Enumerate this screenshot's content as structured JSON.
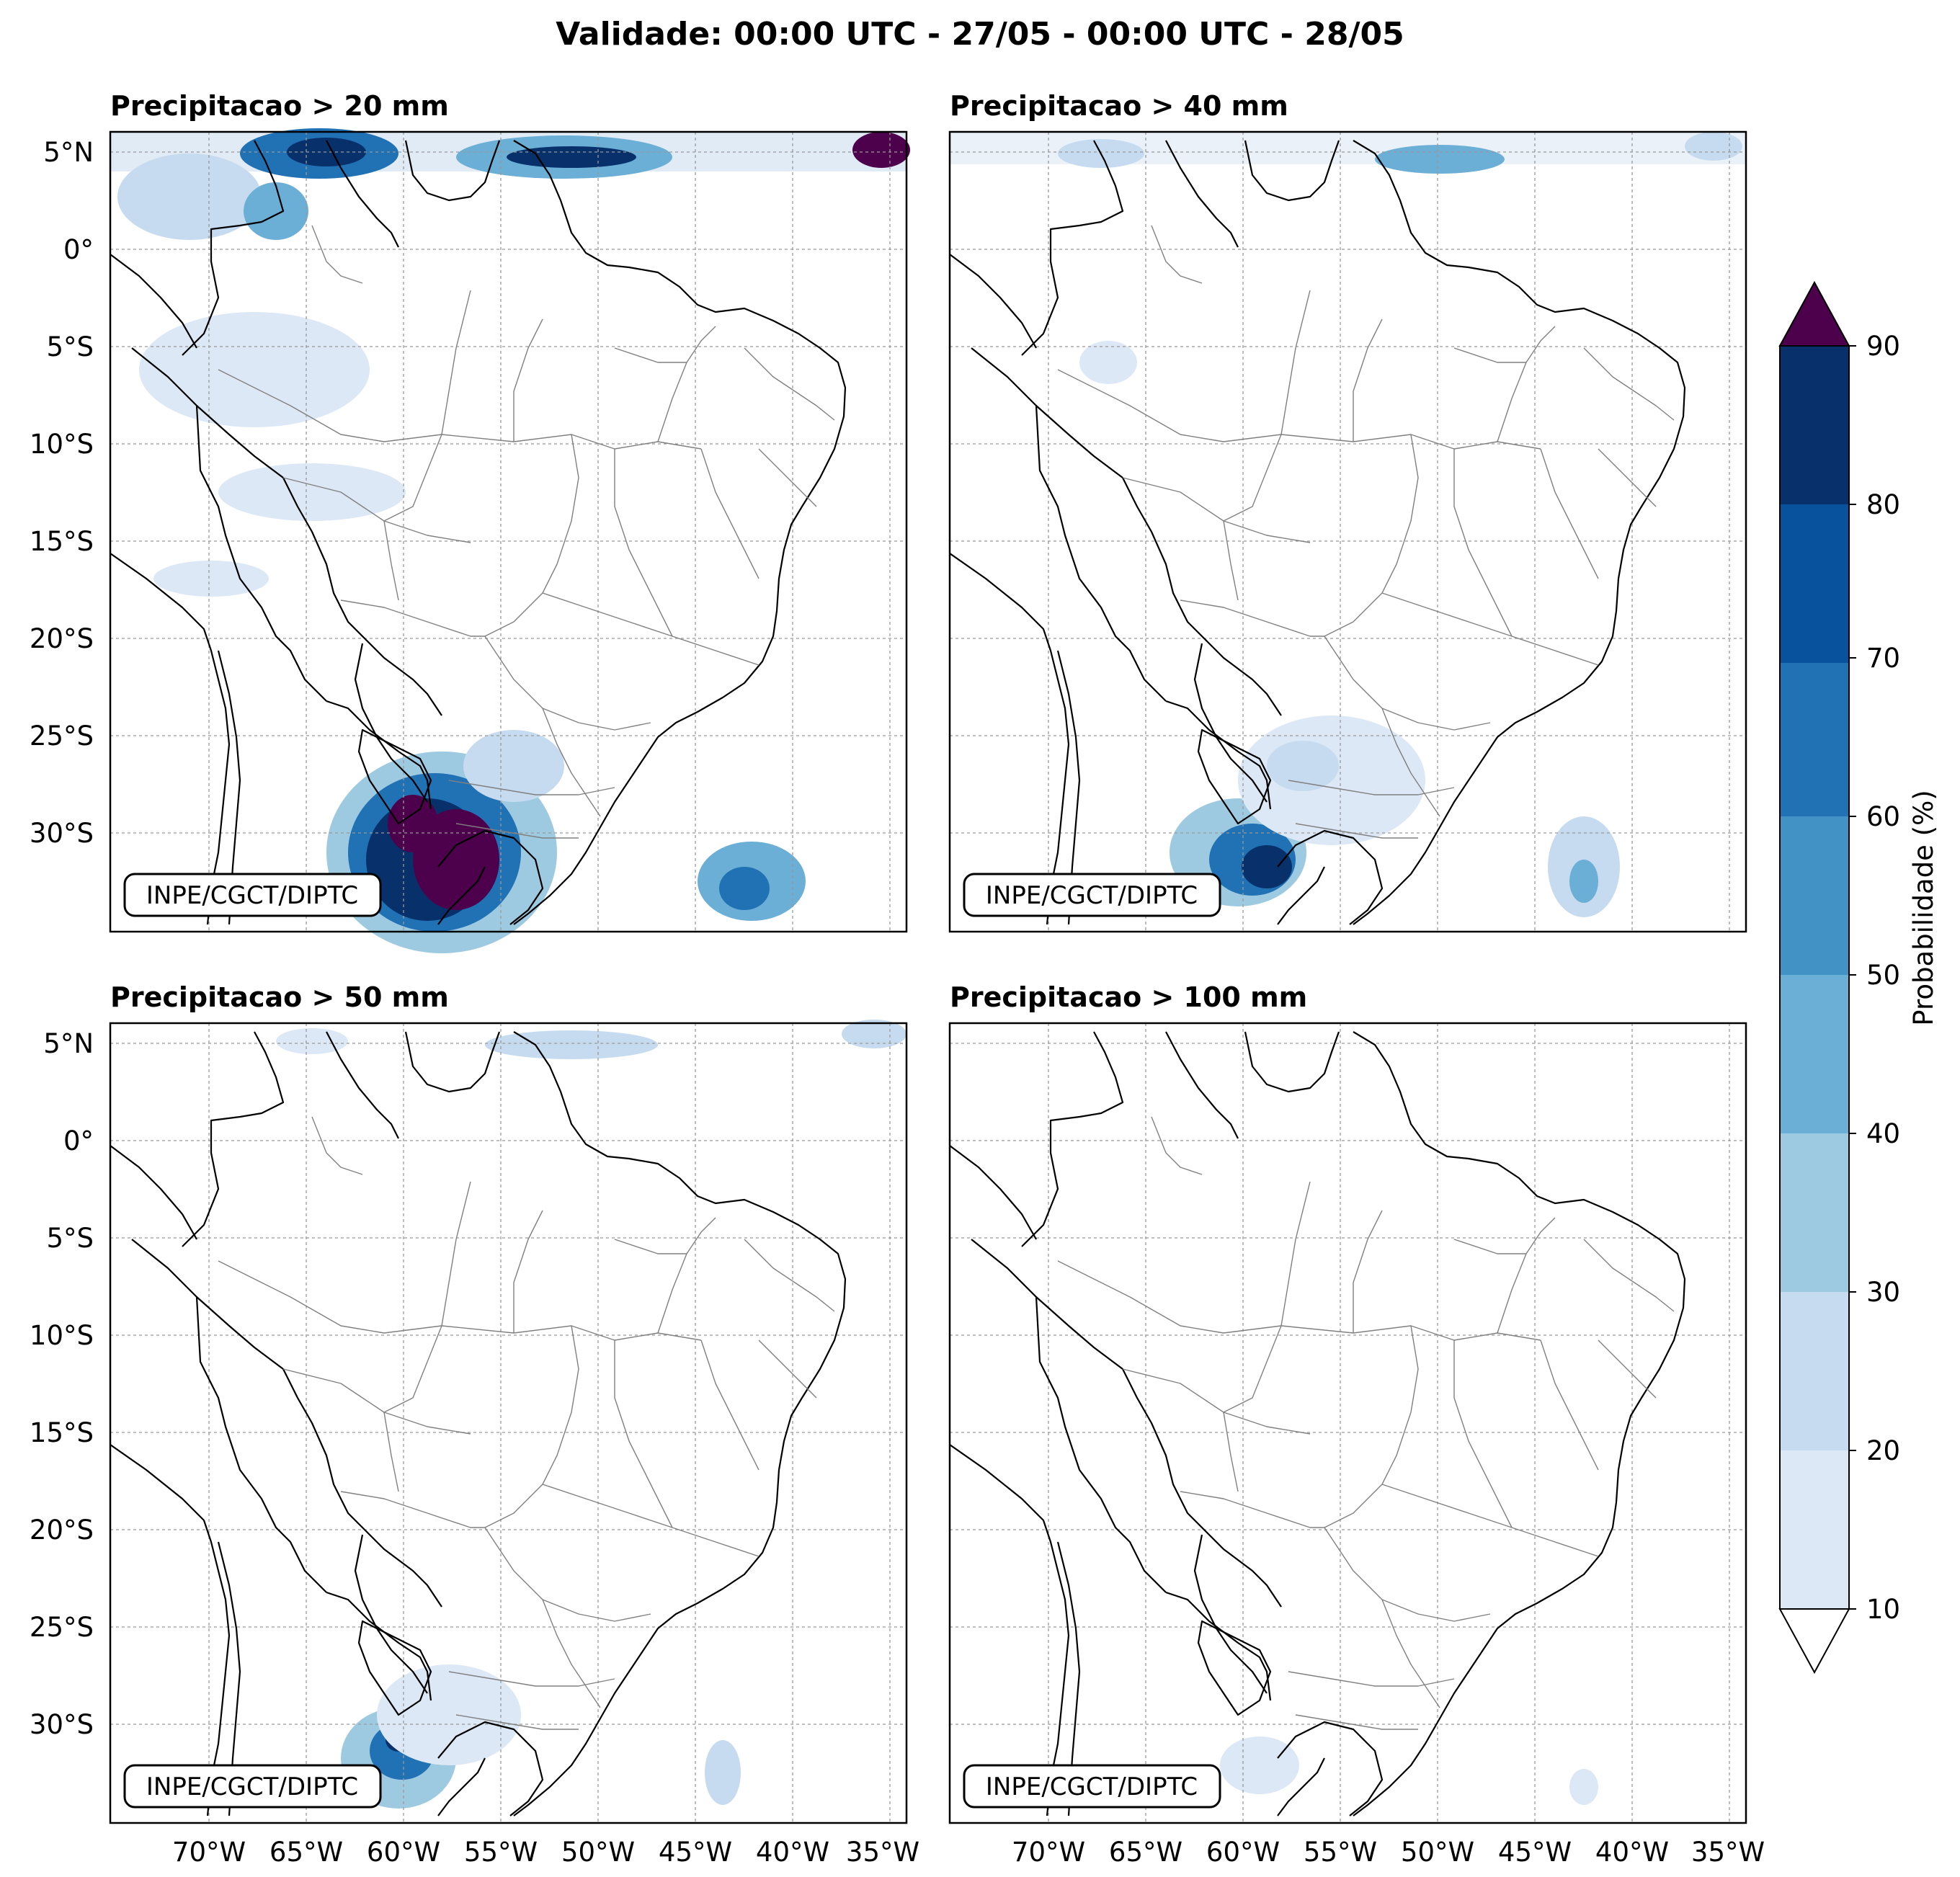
{
  "title": "Validade: 00:00 UTC - 27/05 - 00:00 UTC - 28/05",
  "panels": [
    {
      "title": "Precipitacao > 20 mm",
      "credit": "INPE/CGCT/DIPTC"
    },
    {
      "title": "Precipitacao > 40 mm",
      "credit": "INPE/CGCT/DIPTC"
    },
    {
      "title": "Precipitacao > 50 mm",
      "credit": "INPE/CGCT/DIPTC"
    },
    {
      "title": "Precipitacao > 100 mm",
      "credit": "INPE/CGCT/DIPTC"
    }
  ],
  "lat_ticks": [
    "5°N",
    "0°",
    "5°S",
    "10°S",
    "15°S",
    "20°S",
    "25°S",
    "30°S"
  ],
  "lon_ticks": [
    "70°W",
    "65°W",
    "60°W",
    "55°W",
    "50°W",
    "45°W",
    "40°W",
    "35°W"
  ],
  "colorbar": {
    "label": "Probabilidade (%)",
    "ticks": [
      "10",
      "20",
      "30",
      "40",
      "50",
      "60",
      "70",
      "80",
      "90"
    ],
    "colors": [
      "#dce8f5",
      "#c6dbef",
      "#9ecae1",
      "#6baed6",
      "#4292c6",
      "#2171b5",
      "#08519c",
      "#08306b"
    ],
    "over_color": "#4d004b",
    "under_color": "#ffffff"
  },
  "map_colors": {
    "country_border": "#000000",
    "state_border": "#808080",
    "grid": "#999999"
  }
}
